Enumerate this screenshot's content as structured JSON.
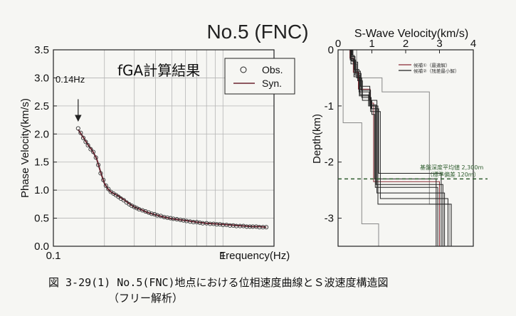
{
  "figure": {
    "title": "No.5 (FNC)",
    "caption_line1": "図 3-29(1) No.5(FNC)地点における位相速度曲線とＳ波速度構造図",
    "caption_line2": "（フリー解析）"
  },
  "colors": {
    "background": "#f6f6f3",
    "axes": "#222222",
    "grid": "#b5b5b5",
    "obs_marker": "#333333",
    "syn_line": "#6b2430",
    "profile_red": "#8a2a34",
    "profile_gray": "#888888",
    "profile_black": "#222222",
    "basement_line": "#2f5d2f"
  },
  "chart_data": [
    {
      "type": "scatter",
      "title": "fGA計算結果",
      "xlabel": "Frequency(Hz)",
      "ylabel": "Phase Velocity(km/s)",
      "xscale": "log",
      "xlim": [
        0.1,
        2.0
      ],
      "ylim": [
        0.0,
        3.5
      ],
      "xticks": [
        {
          "v": 0.1,
          "label": "0.1"
        },
        {
          "v": 1,
          "label": "1"
        }
      ],
      "yticks": [
        {
          "v": 0.0,
          "label": "0.0"
        },
        {
          "v": 0.5,
          "label": "0.5"
        },
        {
          "v": 1.0,
          "label": "1.0"
        },
        {
          "v": 1.5,
          "label": "1.5"
        },
        {
          "v": 2.0,
          "label": "2.0"
        },
        {
          "v": 2.5,
          "label": "2.5"
        },
        {
          "v": 3.0,
          "label": "3.0"
        },
        {
          "v": 3.5,
          "label": "3.5"
        }
      ],
      "grid": true,
      "legend": {
        "position": "top-right",
        "entries": [
          "Obs.",
          "Syn."
        ]
      },
      "annotation": {
        "text": "0.14Hz",
        "x": 0.14,
        "arrow_from_y": 2.62,
        "arrow_to_y": 2.28
      },
      "series": [
        {
          "name": "Obs.",
          "marker": "open-circle",
          "x": [
            0.14,
            0.145,
            0.15,
            0.155,
            0.16,
            0.166,
            0.172,
            0.178,
            0.184,
            0.19,
            0.197,
            0.204,
            0.211,
            0.218,
            0.226,
            0.234,
            0.242,
            0.25,
            0.26,
            0.27,
            0.28,
            0.29,
            0.3,
            0.31,
            0.32,
            0.335,
            0.35,
            0.365,
            0.38,
            0.395,
            0.41,
            0.43,
            0.45,
            0.47,
            0.49,
            0.51,
            0.535,
            0.56,
            0.585,
            0.61,
            0.64,
            0.67,
            0.7,
            0.73,
            0.76,
            0.8,
            0.84,
            0.88,
            0.92,
            0.96,
            1.0,
            1.05,
            1.1,
            1.15,
            1.2,
            1.26,
            1.32,
            1.38,
            1.44,
            1.5,
            1.57,
            1.64,
            1.72,
            1.8
          ],
          "y": [
            2.1,
            2.02,
            1.93,
            1.86,
            1.8,
            1.73,
            1.68,
            1.58,
            1.45,
            1.3,
            1.18,
            1.08,
            1.02,
            0.97,
            0.94,
            0.91,
            0.88,
            0.85,
            0.82,
            0.78,
            0.75,
            0.72,
            0.7,
            0.68,
            0.66,
            0.64,
            0.62,
            0.6,
            0.58,
            0.57,
            0.55,
            0.54,
            0.52,
            0.51,
            0.5,
            0.49,
            0.48,
            0.47,
            0.46,
            0.45,
            0.44,
            0.43,
            0.43,
            0.42,
            0.41,
            0.41,
            0.4,
            0.4,
            0.39,
            0.39,
            0.38,
            0.38,
            0.37,
            0.37,
            0.36,
            0.36,
            0.36,
            0.35,
            0.35,
            0.35,
            0.35,
            0.34,
            0.34,
            0.34
          ]
        },
        {
          "name": "Syn.",
          "marker": "line",
          "x": [
            0.14,
            0.15,
            0.16,
            0.17,
            0.18,
            0.19,
            0.2,
            0.21,
            0.22,
            0.24,
            0.26,
            0.28,
            0.3,
            0.33,
            0.36,
            0.4,
            0.45,
            0.5,
            0.56,
            0.63,
            0.7,
            0.8,
            0.9,
            1.0,
            1.1,
            1.2,
            1.35,
            1.5,
            1.65,
            1.8
          ],
          "y": [
            2.08,
            1.94,
            1.81,
            1.7,
            1.56,
            1.32,
            1.12,
            1.02,
            0.96,
            0.9,
            0.83,
            0.76,
            0.7,
            0.65,
            0.6,
            0.56,
            0.52,
            0.49,
            0.47,
            0.45,
            0.43,
            0.41,
            0.4,
            0.39,
            0.38,
            0.37,
            0.36,
            0.35,
            0.35,
            0.34
          ]
        }
      ]
    },
    {
      "type": "line",
      "title": "S-Wave Velocity(km/s)",
      "xlabel": "S-Wave Velocity(km/s)",
      "ylabel": "Depth(km)",
      "xlim": [
        0,
        4
      ],
      "ylim": [
        0,
        -3.5
      ],
      "xticks": [
        {
          "v": 0,
          "label": "0"
        },
        {
          "v": 1,
          "label": "1"
        },
        {
          "v": 2,
          "label": "2"
        },
        {
          "v": 3,
          "label": "3"
        },
        {
          "v": 4,
          "label": "4"
        }
      ],
      "yticks": [
        {
          "v": 0,
          "label": "0"
        },
        {
          "v": -1,
          "label": "-1"
        },
        {
          "v": -2,
          "label": "-2"
        },
        {
          "v": -3,
          "label": "-3"
        }
      ],
      "legend": {
        "position": "top-right",
        "entries": [
          "候補①（最適解）",
          "候補②（残差最小解）"
        ]
      },
      "annotation": {
        "line1": "基盤深度平均値 2,300m",
        "line2": "（標準偏差 120m）",
        "depth": -2.3
      },
      "search_bounds": [
        {
          "v": [
            0.15,
            0.15,
            0.7,
            0.7,
            1.2,
            1.2,
            2.0,
            2.0
          ],
          "d": [
            0,
            -1.3,
            -1.3,
            -3.1,
            -3.1,
            -3.5,
            -3.5,
            -3.5
          ],
          "style": "gray"
        },
        {
          "v": [
            0.55,
            0.55,
            1.3,
            1.3,
            2.7,
            2.7,
            3.3,
            3.3
          ],
          "d": [
            0,
            -0.5,
            -0.5,
            -0.75,
            -0.75,
            -2.75,
            -2.75,
            -3.5
          ],
          "style": "gray"
        }
      ],
      "profiles": [
        {
          "v": [
            0.35,
            0.35,
            0.45,
            0.45,
            0.6,
            0.6,
            0.95,
            0.95,
            1.05,
            1.05,
            3.0,
            3.0
          ],
          "d": [
            0,
            -0.15,
            -0.15,
            -0.4,
            -0.4,
            -0.7,
            -0.7,
            -0.95,
            -0.95,
            -2.35,
            -2.35,
            -3.5
          ],
          "style": "red"
        },
        {
          "v": [
            0.4,
            0.4,
            0.5,
            0.5,
            0.65,
            0.65,
            0.9,
            0.9,
            1.1,
            1.1,
            2.95,
            2.95
          ],
          "d": [
            0,
            -0.2,
            -0.2,
            -0.45,
            -0.45,
            -0.8,
            -0.8,
            -1.0,
            -1.0,
            -2.45,
            -2.45,
            -3.5
          ],
          "style": "black"
        },
        {
          "v": [
            0.38,
            0.38,
            0.55,
            0.55,
            0.7,
            0.7,
            0.98,
            0.98,
            1.2,
            1.2,
            3.05,
            3.05
          ],
          "d": [
            0,
            -0.25,
            -0.25,
            -0.5,
            -0.5,
            -0.85,
            -0.85,
            -1.05,
            -1.05,
            -2.2,
            -2.2,
            -3.5
          ],
          "style": "black"
        },
        {
          "v": [
            0.42,
            0.42,
            0.48,
            0.48,
            0.62,
            0.62,
            0.92,
            0.92,
            1.15,
            1.15,
            3.15,
            3.15
          ],
          "d": [
            0,
            -0.1,
            -0.1,
            -0.35,
            -0.35,
            -0.75,
            -0.75,
            -0.9,
            -0.9,
            -2.55,
            -2.55,
            -3.5
          ],
          "style": "black"
        },
        {
          "v": [
            0.36,
            0.36,
            0.52,
            0.52,
            0.68,
            0.68,
            0.96,
            0.96,
            1.25,
            1.25,
            3.25,
            3.25
          ],
          "d": [
            0,
            -0.18,
            -0.18,
            -0.42,
            -0.42,
            -0.72,
            -0.72,
            -1.1,
            -1.1,
            -2.65,
            -2.65,
            -3.5
          ],
          "style": "black"
        },
        {
          "v": [
            0.44,
            0.44,
            0.58,
            0.58,
            0.72,
            0.72,
            1.0,
            1.0,
            1.08,
            1.08,
            2.9,
            2.9
          ],
          "d": [
            0,
            -0.22,
            -0.22,
            -0.55,
            -0.55,
            -0.9,
            -0.9,
            -1.15,
            -1.15,
            -2.3,
            -2.3,
            -3.5
          ],
          "style": "black"
        },
        {
          "v": [
            0.4,
            0.4,
            0.5,
            0.5,
            0.66,
            0.66,
            0.94,
            0.94,
            1.18,
            1.18,
            3.35,
            3.35
          ],
          "d": [
            0,
            -0.12,
            -0.12,
            -0.38,
            -0.38,
            -0.65,
            -0.65,
            -1.0,
            -1.0,
            -2.75,
            -2.75,
            -3.5
          ],
          "style": "black"
        },
        {
          "v": [
            0.37,
            0.37,
            0.47,
            0.47,
            0.63,
            0.63,
            0.93,
            0.93,
            1.12,
            1.12,
            3.1,
            3.1
          ],
          "d": [
            0,
            -0.16,
            -0.16,
            -0.48,
            -0.48,
            -0.82,
            -0.82,
            -0.98,
            -0.98,
            -2.4,
            -2.4,
            -3.5
          ],
          "style": "black"
        }
      ]
    }
  ]
}
